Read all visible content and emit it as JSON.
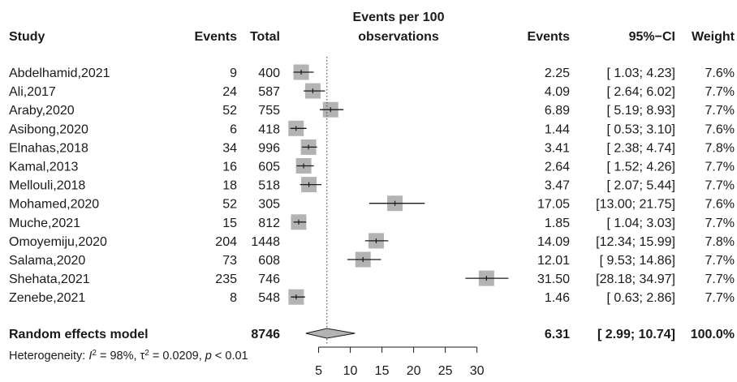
{
  "chart_data": {
    "type": "forest",
    "headers": {
      "study": "Study",
      "events": "Events",
      "total": "Total",
      "plot_title_line1": "Events per 100",
      "plot_title_line2": "observations",
      "est": "Events",
      "ci": "95%−CI",
      "weight": "Weight"
    },
    "studies": [
      {
        "name": "Abdelhamid,2021",
        "events": "9",
        "total": "400",
        "est": 2.25,
        "lo": 1.03,
        "hi": 4.23,
        "est_text": "2.25",
        "ci_text": "[ 1.03;  4.23]",
        "weight_text": "7.6%"
      },
      {
        "name": "Ali,2017",
        "events": "24",
        "total": "587",
        "est": 4.09,
        "lo": 2.64,
        "hi": 6.02,
        "est_text": "4.09",
        "ci_text": "[ 2.64;  6.02]",
        "weight_text": "7.7%"
      },
      {
        "name": "Araby,2020",
        "events": "52",
        "total": "755",
        "est": 6.89,
        "lo": 5.19,
        "hi": 8.93,
        "est_text": "6.89",
        "ci_text": "[ 5.19;  8.93]",
        "weight_text": "7.7%"
      },
      {
        "name": "Asibong,2020",
        "events": "6",
        "total": "418",
        "est": 1.44,
        "lo": 0.53,
        "hi": 3.1,
        "est_text": "1.44",
        "ci_text": "[ 0.53;  3.10]",
        "weight_text": "7.6%"
      },
      {
        "name": "Elnahas,2018",
        "events": "34",
        "total": "996",
        "est": 3.41,
        "lo": 2.38,
        "hi": 4.74,
        "est_text": "3.41",
        "ci_text": "[ 2.38;  4.74]",
        "weight_text": "7.8%"
      },
      {
        "name": "Kamal,2013",
        "events": "16",
        "total": "605",
        "est": 2.64,
        "lo": 1.52,
        "hi": 4.26,
        "est_text": "2.64",
        "ci_text": "[ 1.52;  4.26]",
        "weight_text": "7.7%"
      },
      {
        "name": "Mellouli,2018",
        "events": "18",
        "total": "518",
        "est": 3.47,
        "lo": 2.07,
        "hi": 5.44,
        "est_text": "3.47",
        "ci_text": "[ 2.07;  5.44]",
        "weight_text": "7.7%"
      },
      {
        "name": "Mohamed,2020",
        "events": "52",
        "total": "305",
        "est": 17.05,
        "lo": 13.0,
        "hi": 21.75,
        "est_text": "17.05",
        "ci_text": "[13.00; 21.75]",
        "weight_text": "7.6%"
      },
      {
        "name": "Muche,2021",
        "events": "15",
        "total": "812",
        "est": 1.85,
        "lo": 1.04,
        "hi": 3.03,
        "est_text": "1.85",
        "ci_text": "[ 1.04;  3.03]",
        "weight_text": "7.7%"
      },
      {
        "name": "Omoyemiju,2020",
        "events": "204",
        "total": "1448",
        "est": 14.09,
        "lo": 12.34,
        "hi": 15.99,
        "est_text": "14.09",
        "ci_text": "[12.34; 15.99]",
        "weight_text": "7.8%"
      },
      {
        "name": "Salama,2020",
        "events": "73",
        "total": "608",
        "est": 12.01,
        "lo": 9.53,
        "hi": 14.86,
        "est_text": "12.01",
        "ci_text": "[ 9.53; 14.86]",
        "weight_text": "7.7%"
      },
      {
        "name": "Shehata,2021",
        "events": "235",
        "total": "746",
        "est": 31.5,
        "lo": 28.18,
        "hi": 34.97,
        "est_text": "31.50",
        "ci_text": "[28.18; 34.97]",
        "weight_text": "7.7%"
      },
      {
        "name": "Zenebe,2021",
        "events": "8",
        "total": "548",
        "est": 1.46,
        "lo": 0.63,
        "hi": 2.86,
        "est_text": "1.46",
        "ci_text": "[ 0.63;  2.86]",
        "weight_text": "7.7%"
      }
    ],
    "summary": {
      "label": "Random effects model",
      "total": "8746",
      "est": 6.31,
      "lo": 2.99,
      "hi": 10.74,
      "est_text": "6.31",
      "ci_text": "[ 2.99; 10.74]",
      "weight_text": "100.0%"
    },
    "heterogeneity": {
      "prefix": "Heterogeneity: ",
      "i2_symbol": "I",
      "i2_value": " = 98%, ",
      "tau_symbol": "τ",
      "tau_value": " = 0.0209, ",
      "p_symbol": "p",
      "p_value": " < 0.01"
    },
    "x_axis": {
      "ticks": [
        5,
        10,
        15,
        20,
        25,
        30
      ],
      "tick_labels": [
        "5",
        "10",
        "15",
        "20",
        "25",
        "30"
      ],
      "reference_line": 6.31
    },
    "colors": {
      "square": "#b3b3b3",
      "line": "#1a1a1a",
      "diamond": "#b3b3b3",
      "reference": "#555555"
    }
  }
}
